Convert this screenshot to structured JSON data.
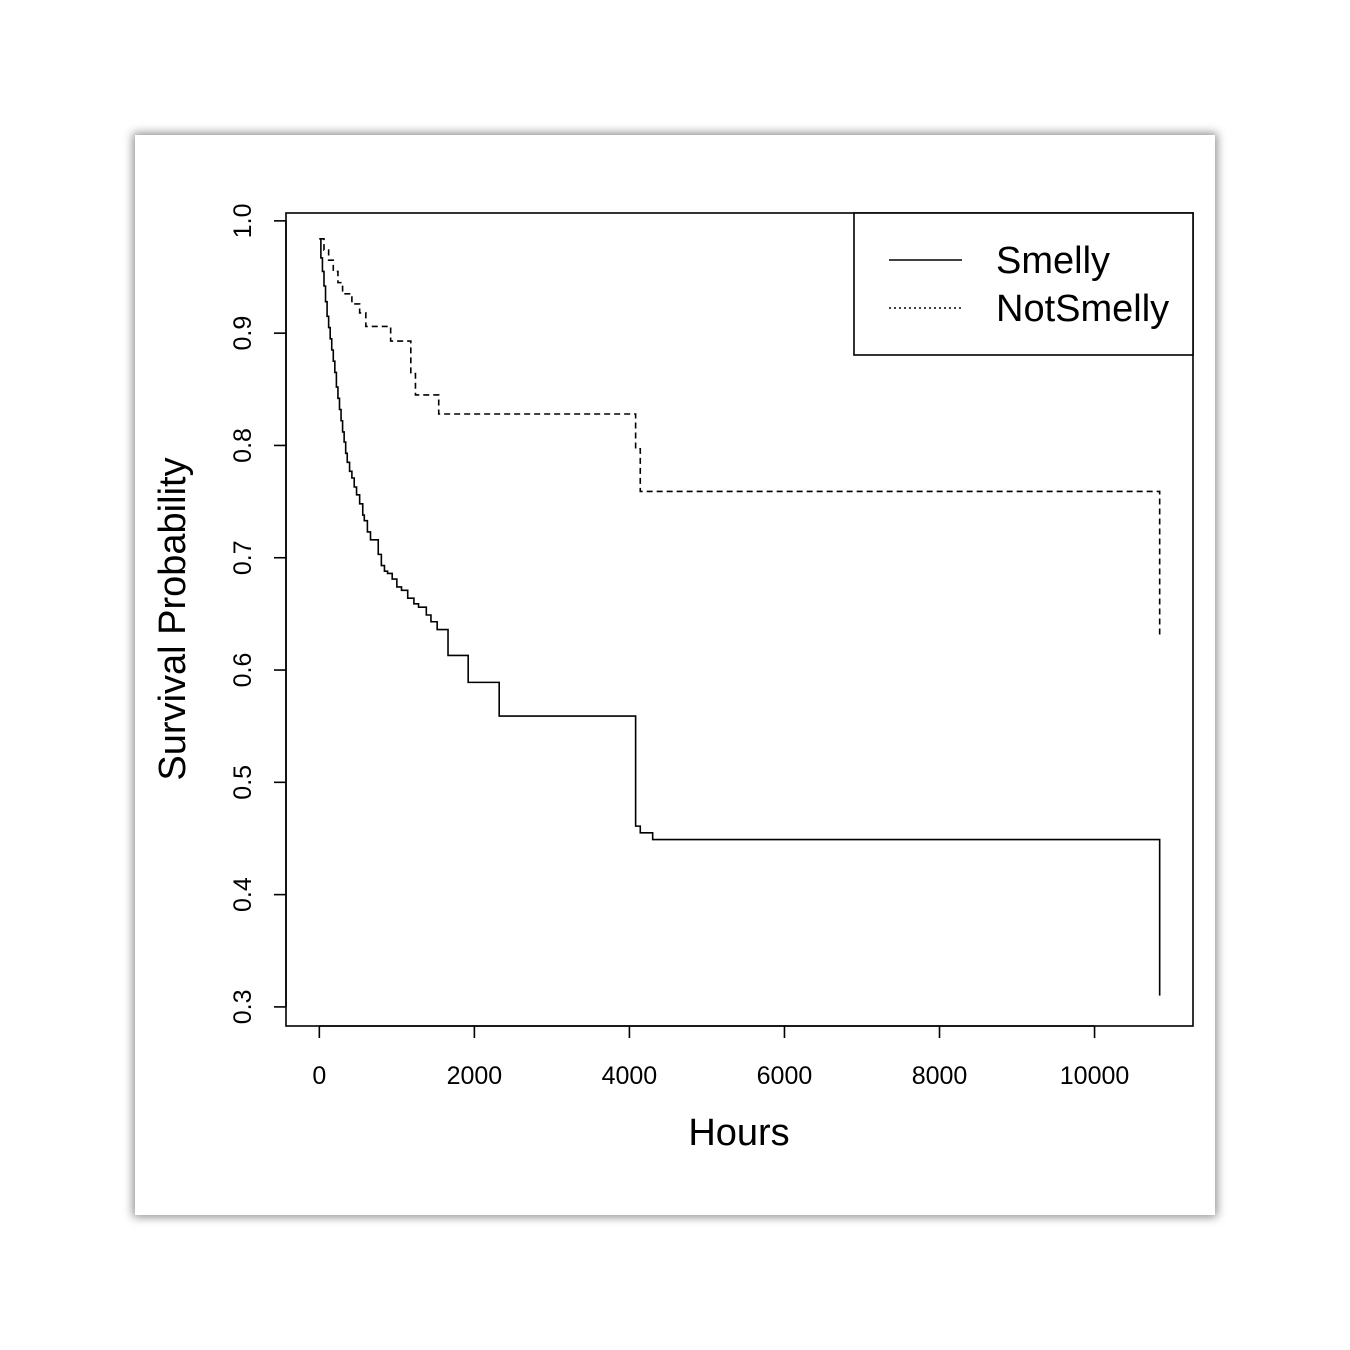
{
  "chart_data": {
    "type": "line",
    "title": "",
    "xlabel": "Hours",
    "ylabel": "Survival Probability",
    "xlim": [
      -430,
      11270
    ],
    "ylim": [
      0.283,
      1.007
    ],
    "x_ticks": [
      "0",
      "2000",
      "4000",
      "6000",
      "8000",
      "10000"
    ],
    "y_ticks": [
      "0.3",
      "0.4",
      "0.5",
      "0.6",
      "0.7",
      "0.8",
      "0.9",
      "1.0"
    ],
    "grid": false,
    "legend_position": "top-right",
    "series": [
      {
        "name": "Smelly",
        "line_style": "solid",
        "color": "#000000",
        "x": [
          0,
          20,
          40,
          60,
          80,
          100,
          120,
          140,
          160,
          180,
          200,
          220,
          240,
          260,
          280,
          300,
          320,
          340,
          360,
          390,
          420,
          450,
          480,
          520,
          560,
          580,
          620,
          660,
          700,
          760,
          800,
          840,
          880,
          940,
          1000,
          1060,
          1140,
          1220,
          1280,
          1380,
          1440,
          1520,
          1660,
          1920,
          2320,
          4080,
          4140,
          4300,
          10840
        ],
        "y": [
          0.984,
          0.967,
          0.955,
          0.942,
          0.928,
          0.915,
          0.905,
          0.895,
          0.885,
          0.875,
          0.865,
          0.852,
          0.842,
          0.832,
          0.822,
          0.812,
          0.803,
          0.793,
          0.785,
          0.777,
          0.771,
          0.763,
          0.756,
          0.748,
          0.738,
          0.733,
          0.723,
          0.716,
          0.716,
          0.703,
          0.693,
          0.688,
          0.686,
          0.681,
          0.674,
          0.671,
          0.664,
          0.659,
          0.656,
          0.649,
          0.643,
          0.636,
          0.613,
          0.589,
          0.559,
          0.461,
          0.455,
          0.449,
          0.31
        ]
      },
      {
        "name": "NotSmelly",
        "line_style": "dashed",
        "color": "#000000",
        "x": [
          0,
          60,
          120,
          180,
          240,
          300,
          420,
          520,
          600,
          920,
          1180,
          1240,
          1540,
          4080,
          4140,
          10840
        ],
        "y": [
          0.984,
          0.974,
          0.965,
          0.955,
          0.945,
          0.935,
          0.926,
          0.918,
          0.906,
          0.893,
          0.864,
          0.845,
          0.828,
          0.797,
          0.759,
          0.629
        ]
      }
    ]
  }
}
